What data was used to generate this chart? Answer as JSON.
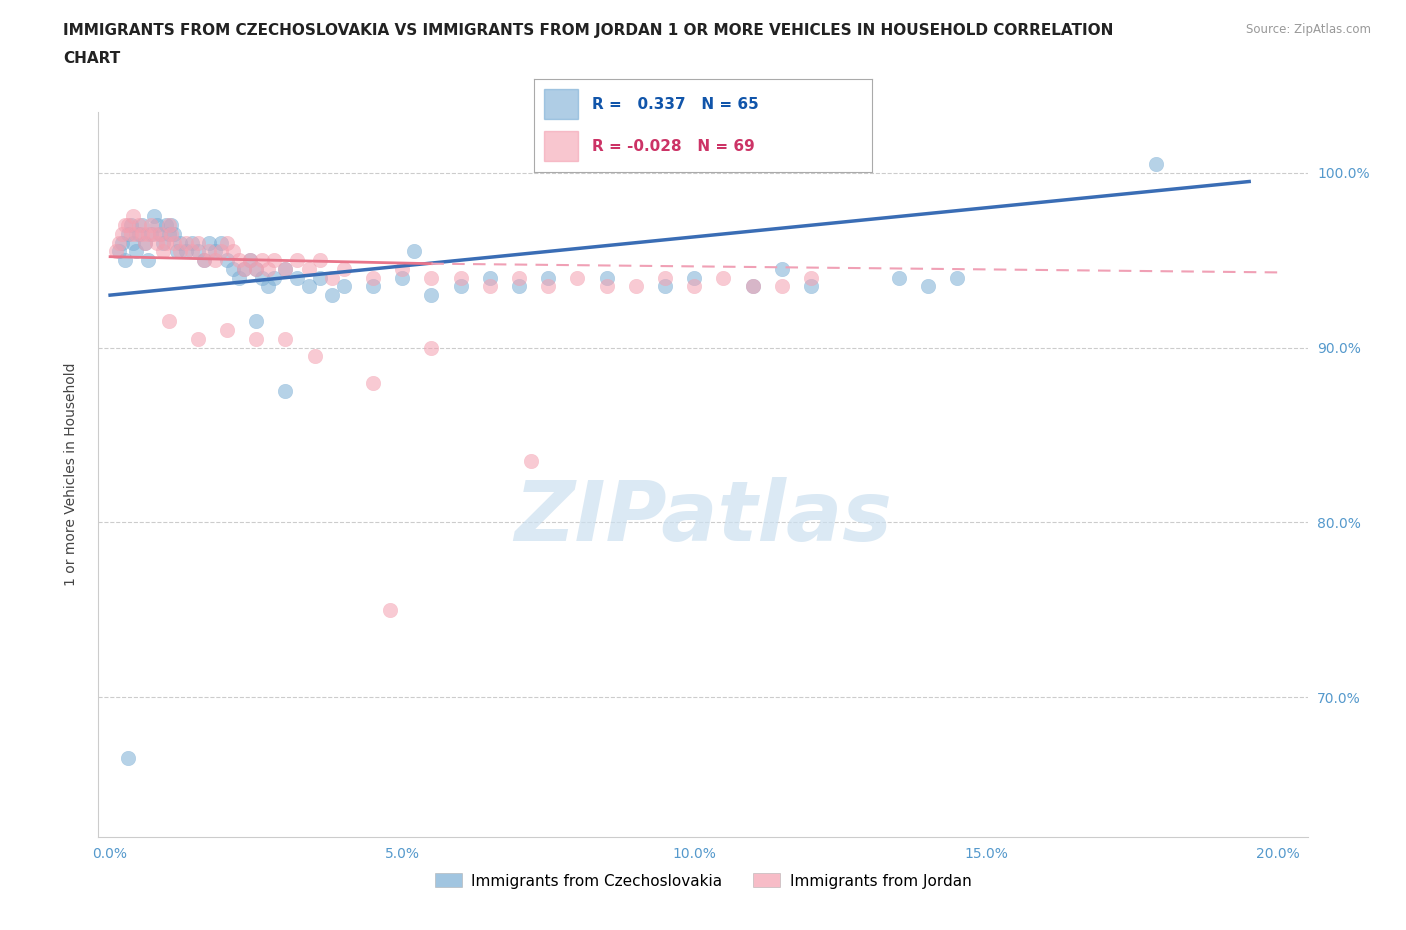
{
  "title_line1": "IMMIGRANTS FROM CZECHOSLOVAKIA VS IMMIGRANTS FROM JORDAN 1 OR MORE VEHICLES IN HOUSEHOLD CORRELATION",
  "title_line2": "CHART",
  "source": "Source: ZipAtlas.com",
  "ylabel": "1 or more Vehicles in Household",
  "legend_labels": [
    "Immigrants from Czechoslovakia",
    "Immigrants from Jordan"
  ],
  "blue_color": "#7aadd4",
  "pink_color": "#f4a0b0",
  "blue_line_color": "#3a6db5",
  "pink_line_solid_color": "#e8758a",
  "pink_line_dash_color": "#f0a0b5",
  "axis_tick_color": "#5599cc",
  "grid_color": "#cccccc",
  "background_color": "#ffffff",
  "watermark_color": "#cce0f0",
  "xlim": [
    -0.2,
    20.5
  ],
  "ylim": [
    62.0,
    103.5
  ],
  "yticks": [
    70.0,
    80.0,
    90.0,
    100.0
  ],
  "xticks": [
    0.0,
    5.0,
    10.0,
    15.0,
    20.0
  ],
  "blue_x": [
    0.15,
    0.2,
    0.25,
    0.3,
    0.35,
    0.4,
    0.45,
    0.5,
    0.55,
    0.6,
    0.65,
    0.7,
    0.75,
    0.8,
    0.85,
    0.9,
    0.95,
    1.0,
    1.05,
    1.1,
    1.15,
    1.2,
    1.3,
    1.4,
    1.5,
    1.6,
    1.7,
    1.8,
    1.9,
    2.0,
    2.1,
    2.2,
    2.3,
    2.4,
    2.5,
    2.6,
    2.7,
    2.8,
    3.0,
    3.2,
    3.4,
    3.6,
    3.8,
    4.0,
    4.5,
    5.0,
    5.5,
    6.0,
    6.5,
    7.0,
    7.5,
    8.5,
    9.5,
    10.0,
    11.0,
    11.5,
    12.0,
    13.5,
    14.0,
    14.5,
    17.9,
    0.3,
    2.5,
    3.0,
    5.2
  ],
  "blue_y": [
    95.5,
    96.0,
    95.0,
    96.5,
    97.0,
    96.0,
    95.5,
    96.5,
    97.0,
    96.0,
    95.0,
    96.5,
    97.5,
    97.0,
    96.5,
    96.0,
    97.0,
    96.5,
    97.0,
    96.5,
    95.5,
    96.0,
    95.5,
    96.0,
    95.5,
    95.0,
    96.0,
    95.5,
    96.0,
    95.0,
    94.5,
    94.0,
    94.5,
    95.0,
    94.5,
    94.0,
    93.5,
    94.0,
    94.5,
    94.0,
    93.5,
    94.0,
    93.0,
    93.5,
    93.5,
    94.0,
    93.0,
    93.5,
    94.0,
    93.5,
    94.0,
    94.0,
    93.5,
    94.0,
    93.5,
    94.5,
    93.5,
    94.0,
    93.5,
    94.0,
    100.5,
    66.5,
    91.5,
    87.5,
    95.5
  ],
  "pink_x": [
    0.1,
    0.15,
    0.2,
    0.25,
    0.3,
    0.35,
    0.4,
    0.45,
    0.5,
    0.55,
    0.6,
    0.65,
    0.7,
    0.75,
    0.8,
    0.85,
    0.9,
    0.95,
    1.0,
    1.05,
    1.1,
    1.2,
    1.3,
    1.4,
    1.5,
    1.6,
    1.7,
    1.8,
    1.9,
    2.0,
    2.1,
    2.2,
    2.3,
    2.4,
    2.5,
    2.6,
    2.7,
    2.8,
    3.0,
    3.2,
    3.4,
    3.6,
    3.8,
    4.0,
    4.5,
    5.0,
    5.5,
    6.0,
    6.5,
    7.0,
    7.5,
    8.0,
    8.5,
    9.0,
    9.5,
    10.0,
    10.5,
    11.0,
    11.5,
    12.0,
    1.0,
    1.5,
    2.0,
    2.5,
    3.0,
    3.5,
    4.5,
    5.5,
    7.2
  ],
  "pink_y": [
    95.5,
    96.0,
    96.5,
    97.0,
    97.0,
    96.5,
    97.5,
    96.5,
    97.0,
    96.5,
    96.0,
    96.5,
    97.0,
    96.5,
    96.0,
    96.5,
    95.5,
    96.0,
    97.0,
    96.5,
    96.0,
    95.5,
    96.0,
    95.5,
    96.0,
    95.0,
    95.5,
    95.0,
    95.5,
    96.0,
    95.5,
    95.0,
    94.5,
    95.0,
    94.5,
    95.0,
    94.5,
    95.0,
    94.5,
    95.0,
    94.5,
    95.0,
    94.0,
    94.5,
    94.0,
    94.5,
    94.0,
    94.0,
    93.5,
    94.0,
    93.5,
    94.0,
    93.5,
    93.5,
    94.0,
    93.5,
    94.0,
    93.5,
    93.5,
    94.0,
    91.5,
    90.5,
    91.0,
    90.5,
    90.5,
    89.5,
    88.0,
    90.0,
    83.5
  ],
  "pink_outlier_x": 4.8,
  "pink_outlier_y": 75.0,
  "blue_trend_x0": 0.0,
  "blue_trend_y0": 93.0,
  "blue_trend_x1": 19.5,
  "blue_trend_y1": 99.5,
  "pink_solid_x0": 0.0,
  "pink_solid_y0": 95.2,
  "pink_solid_x1": 5.5,
  "pink_solid_y1": 94.8,
  "pink_dash_x0": 5.5,
  "pink_dash_y0": 94.8,
  "pink_dash_x1": 20.0,
  "pink_dash_y1": 94.3,
  "title_fontsize": 11,
  "axis_label_fontsize": 10,
  "tick_label_fontsize": 10,
  "legend_r_blue": "R =   0.337   N = 65",
  "legend_r_pink": "R = -0.028   N = 69"
}
